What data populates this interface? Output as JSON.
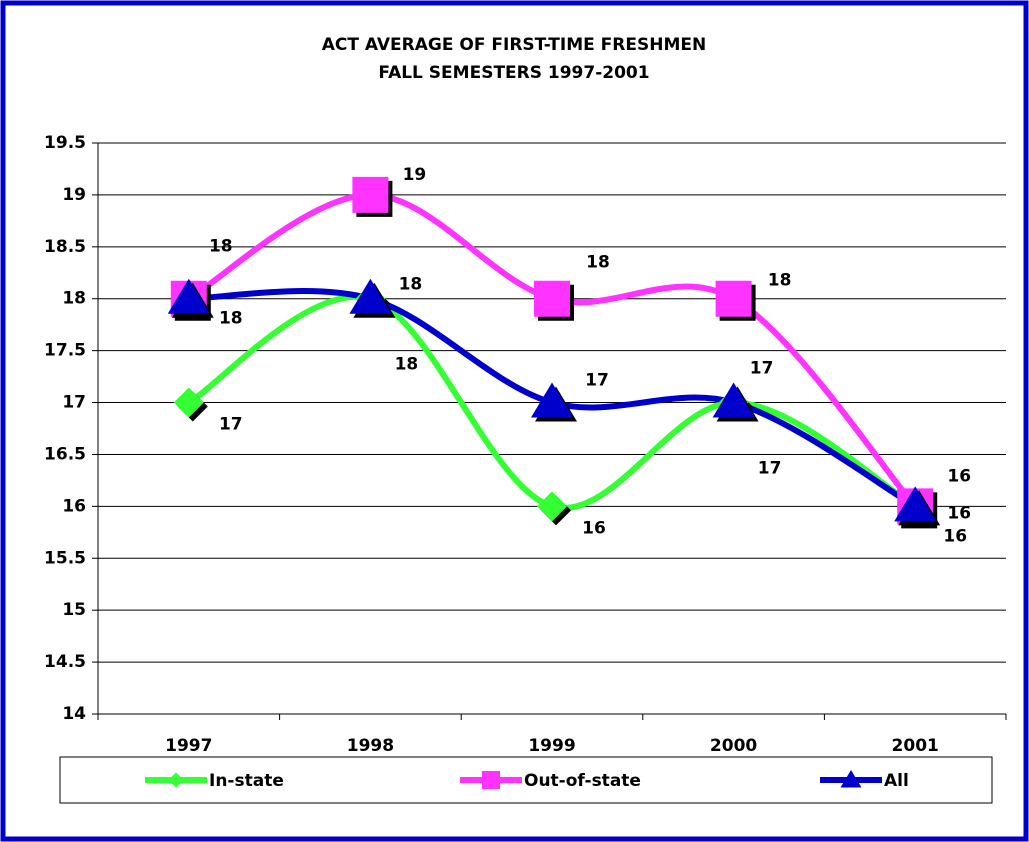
{
  "chart_data": {
    "type": "line",
    "title": "ACT AVERAGE OF FIRST-TIME FRESHMEN",
    "subtitle": "FALL SEMESTERS 1997-2001",
    "categories": [
      "1997",
      "1998",
      "1999",
      "2000",
      "2001"
    ],
    "series": [
      {
        "name": "In-state",
        "color": "#33ff33",
        "marker": "diamond",
        "values": [
          17,
          18,
          16,
          17,
          16
        ]
      },
      {
        "name": "Out-of-state",
        "color": "#ff33ff",
        "marker": "square",
        "values": [
          18,
          19,
          18,
          18,
          16
        ]
      },
      {
        "name": "All",
        "color": "#0000cc",
        "marker": "triangle",
        "values": [
          18,
          18,
          17,
          17,
          16
        ]
      }
    ],
    "ylim": [
      14,
      19.5
    ],
    "yticks": [
      14,
      14.5,
      15,
      15.5,
      16,
      16.5,
      17,
      17.5,
      18,
      18.5,
      19,
      19.5
    ],
    "grid": true,
    "smooth": true,
    "legend": "bottom"
  }
}
